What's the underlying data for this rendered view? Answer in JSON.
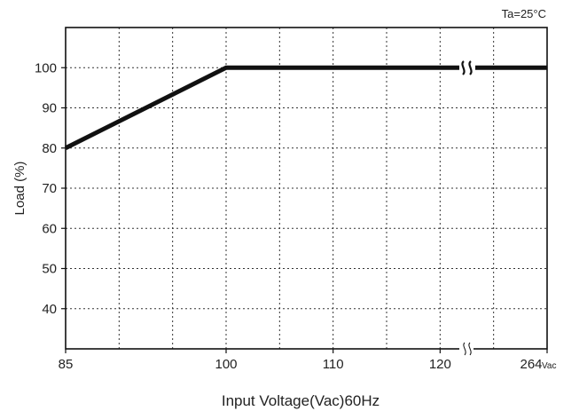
{
  "chart_data": {
    "type": "line",
    "annotation": "Ta=25°C",
    "xlabel": "Input Voltage(Vac)60Hz",
    "ylabel": "Load (%)",
    "x_tick_labels": [
      "85",
      "100",
      "110",
      "120",
      "264"
    ],
    "x_tick_values": [
      85,
      100,
      110,
      120,
      264
    ],
    "x_unit": "Vac",
    "y_ticks": [
      40,
      50,
      60,
      70,
      80,
      90,
      100
    ],
    "ylim": [
      30,
      110
    ],
    "x_axis_break": "between 120 and 264",
    "grid": true,
    "grid_style": "dotted",
    "series": [
      {
        "x": [
          85,
          100,
          264
        ],
        "y": [
          80,
          100,
          100
        ]
      }
    ]
  }
}
